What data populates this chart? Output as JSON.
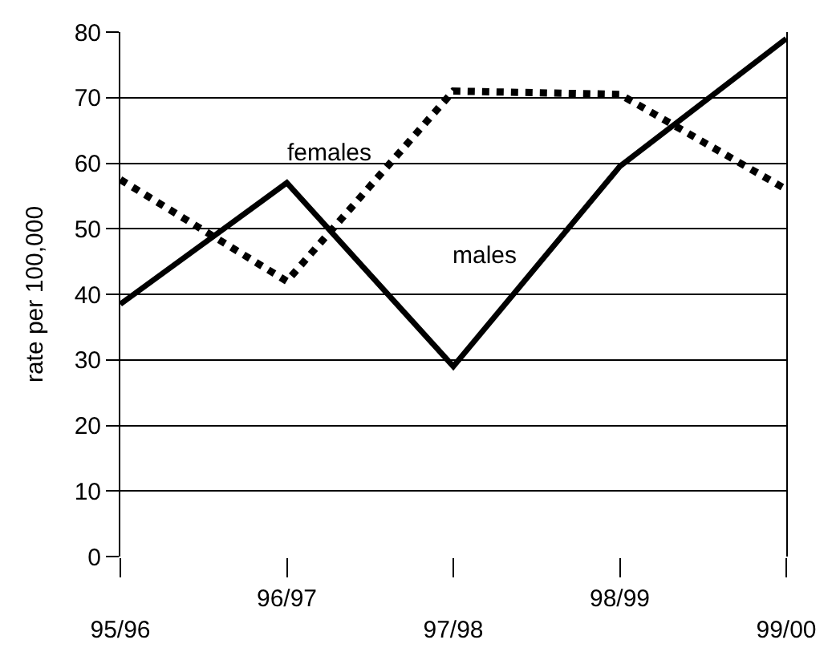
{
  "chart_data": {
    "type": "line",
    "ylabel": "rate per 100,000",
    "categories": [
      "95/96",
      "96/97",
      "97/98",
      "98/99",
      "99/00"
    ],
    "series": [
      {
        "name": "males",
        "color": "#000000",
        "line_style": "solid",
        "values": [
          38.5,
          57,
          29,
          59.5,
          79
        ]
      },
      {
        "name": "females",
        "color": "#000000",
        "line_style": "dotted",
        "values": [
          57.5,
          42,
          71,
          70.5,
          56
        ]
      }
    ],
    "ylim": [
      0,
      80
    ],
    "yticks": [
      0,
      10,
      20,
      30,
      40,
      50,
      60,
      70,
      80
    ],
    "grid": "y",
    "legend": false,
    "marker": "none"
  }
}
